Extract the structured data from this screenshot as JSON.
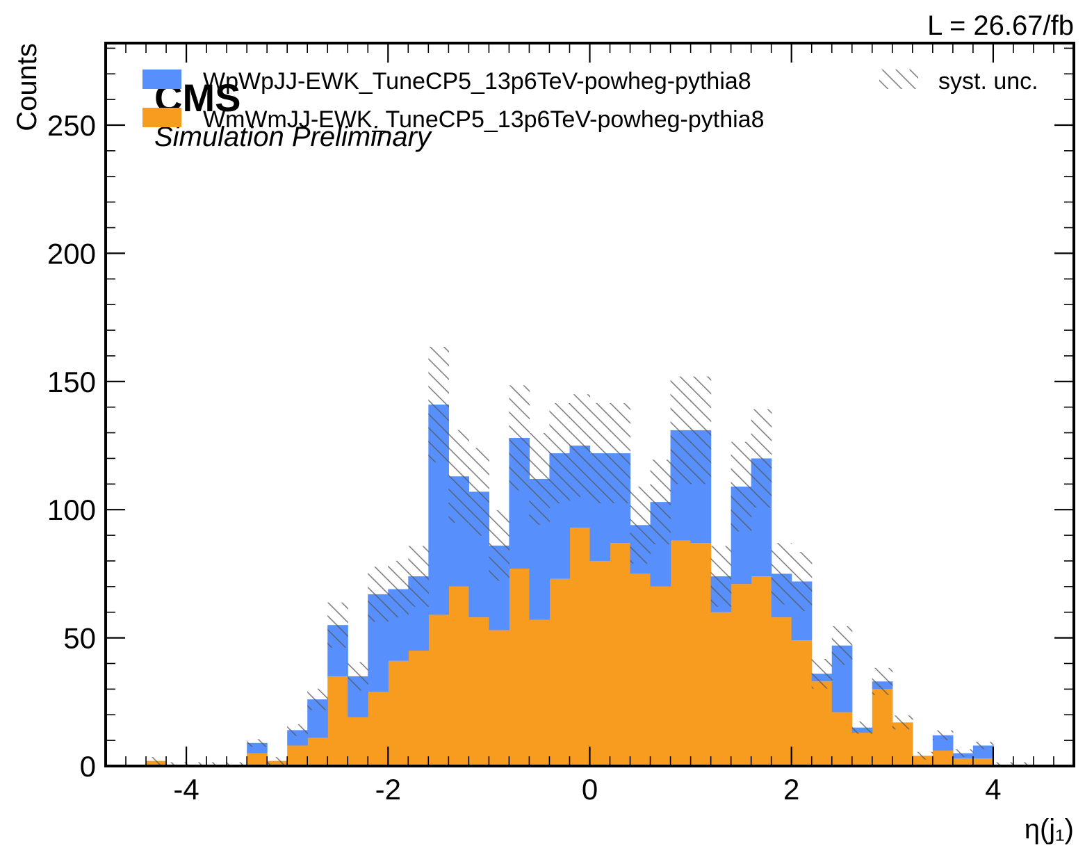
{
  "chart_data": {
    "type": "histogram",
    "stacked": true,
    "xlabel": "η(j₁)",
    "ylabel": "Counts",
    "xlim": [
      -4.8,
      4.8
    ],
    "ylim": [
      0,
      282
    ],
    "x_ticks": [
      -4,
      -2,
      0,
      2,
      4
    ],
    "x_tick_labels": [
      "-4",
      "-2",
      "0",
      "2",
      "4"
    ],
    "y_ticks": [
      0,
      50,
      100,
      150,
      200,
      250
    ],
    "y_tick_labels": [
      "0",
      "50",
      "100",
      "150",
      "200",
      "250"
    ],
    "bins": {
      "start": -4.4,
      "width": 0.2,
      "count": 44
    },
    "series": [
      {
        "name": "WmWmJJ-EWK_TuneCP5_13p6TeV-powheg-pythia8",
        "color": "#f89c20",
        "values": [
          2,
          0,
          0,
          0,
          0,
          5,
          2,
          8,
          11,
          35,
          19,
          29,
          41,
          45,
          59,
          70,
          58,
          53,
          77,
          57,
          73,
          93,
          80,
          87,
          75,
          70,
          88,
          87,
          60,
          71,
          74,
          58,
          49,
          33,
          21,
          13,
          30,
          17,
          4,
          6,
          3,
          3,
          0,
          0
        ]
      },
      {
        "name": "WpWpJJ-EWK_TuneCP5_13p6TeV-powheg-pythia8",
        "color": "#5790fc",
        "values": [
          0,
          0,
          0,
          0,
          0,
          4,
          0,
          6,
          15,
          20,
          16,
          38,
          28,
          29,
          82,
          43,
          49,
          33,
          51,
          55,
          49,
          32,
          42,
          35,
          19,
          33,
          43,
          44,
          14,
          38,
          46,
          17,
          23,
          3,
          26,
          2,
          3,
          0,
          0,
          6,
          2,
          5,
          0,
          0
        ]
      }
    ],
    "totals": [
      2,
      0,
      0,
      0,
      0,
      9,
      2,
      14,
      26,
      55,
      35,
      67,
      69,
      74,
      141,
      113,
      107,
      86,
      128,
      112,
      122,
      125,
      122,
      122,
      94,
      103,
      131,
      131,
      74,
      109,
      120,
      75,
      72,
      36,
      47,
      15,
      33,
      17,
      4,
      12,
      5,
      8,
      0,
      0
    ],
    "syst_unc": {
      "name": "syst. unc.",
      "rel": 0.16,
      "color": "#555555"
    },
    "legend": {
      "position": "top",
      "entries": [
        "WpWpJJ-EWK_TuneCP5_13p6TeV-powheg-pythia8",
        "WmWmJJ-EWK_TuneCP5_13p6TeV-powheg-pythia8",
        "syst. unc."
      ]
    },
    "experiment_label": "CMS",
    "experiment_sublabel": "Simulation Preliminary",
    "lumi_label": "L = 26.67/fb"
  }
}
